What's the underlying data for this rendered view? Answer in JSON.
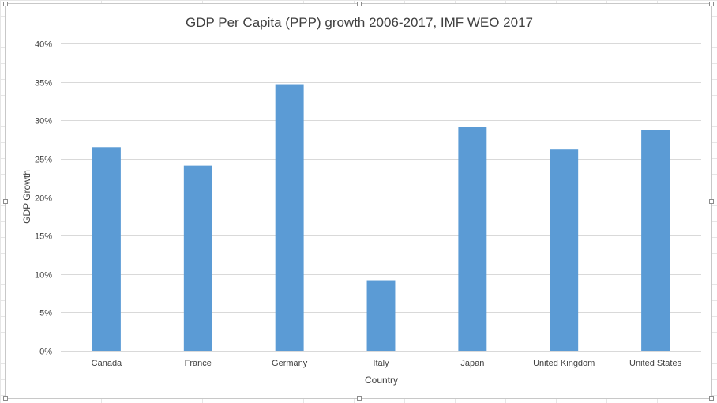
{
  "chart_data": {
    "type": "bar",
    "title": "GDP Per Capita (PPP) growth 2006-2017, IMF WEO 2017",
    "xlabel": "Country",
    "ylabel": "GDP Growth",
    "categories": [
      "Canada",
      "France",
      "Germany",
      "Italy",
      "Japan",
      "United Kingdom",
      "United States"
    ],
    "values": [
      0.265,
      0.241,
      0.347,
      0.092,
      0.291,
      0.262,
      0.287
    ],
    "ylim": [
      0,
      0.4
    ],
    "yticks": [
      0,
      0.05,
      0.1,
      0.15,
      0.2,
      0.25,
      0.3,
      0.35,
      0.4
    ],
    "ytick_labels": [
      "0%",
      "5%",
      "10%",
      "15%",
      "20%",
      "25%",
      "30%",
      "35%",
      "40%"
    ],
    "grid": true,
    "legend": "none",
    "bar_color": "#5b9bd5"
  }
}
